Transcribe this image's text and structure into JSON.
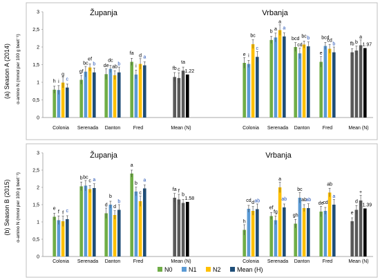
{
  "colors": {
    "N0": "#70ad47",
    "N1": "#5b9bd5",
    "N2": "#ffc000",
    "MeanH": "#1f4e79",
    "MeanN": "#595959",
    "MeanN_last": "#000000",
    "letter": "#000000",
    "letter_highlight": "#1f4eb4"
  },
  "legend": [
    {
      "key": "N0",
      "label": "N0"
    },
    {
      "key": "N1",
      "label": "N1"
    },
    {
      "key": "N2",
      "label": "N2"
    },
    {
      "key": "MeanH",
      "label": "Mean (H)"
    }
  ],
  "chart_data": [
    {
      "type": "bar",
      "panel_label": "(a) Season A (2014)",
      "ylabel": "α-amino N (mmol per 100 g beet⁻¹)",
      "ylim": [
        0,
        3
      ],
      "yticks": [
        "0",
        "0,5",
        "1",
        "1,5",
        "2",
        "2,5",
        "3"
      ],
      "locations": [
        "Županja",
        "Vrbanja"
      ],
      "categories": [
        "Colonia",
        "Serenada",
        "Danton",
        "Fred",
        "Mean (N)",
        "Colonia",
        "Serenada",
        "Danton",
        "Fred",
        "Mean (N)"
      ],
      "series": [
        {
          "name": "N0",
          "values": [
            0.79,
            1.07,
            1.23,
            1.58,
            1.15,
            1.55,
            2.2,
            2.0,
            1.58,
            1.85
          ],
          "letters": [
            "h",
            "gf",
            "de",
            "fa",
            "fb",
            "e",
            "b",
            "bcd",
            "e",
            "fb"
          ]
        },
        {
          "name": "N1",
          "values": [
            0.78,
            1.3,
            1.38,
            1.22,
            1.12,
            1.52,
            2.27,
            1.82,
            2.03,
            1.9
          ],
          "letters": [
            "i",
            "bc",
            "dc",
            "i",
            "c",
            "i",
            "a",
            "cd",
            "bcd",
            "b"
          ]
        },
        {
          "name": "N2",
          "values": [
            0.99,
            1.42,
            1.2,
            1.52,
            1.33,
            2.08,
            2.48,
            2.07,
            1.95,
            2.05
          ],
          "letters": [
            "g",
            "ef",
            "ab",
            "d",
            "ta",
            "bc",
            "a",
            "bc",
            "cd",
            "a"
          ]
        },
        {
          "name": "Mean (H)",
          "values": [
            0.85,
            1.28,
            1.28,
            1.48,
            1.22,
            1.72,
            2.3,
            2.02,
            1.85,
            1.97
          ],
          "letters": [
            "c",
            "b",
            "b",
            "a",
            "",
            "c",
            "a",
            "b",
            "b",
            ""
          ]
        }
      ],
      "mean_value_labels": [
        "1.22",
        "1.97"
      ]
    },
    {
      "type": "bar",
      "panel_label": "(b) Season B (2015)",
      "ylabel": "α-amino N (mmol per 100 g beet⁻¹)",
      "ylim": [
        0,
        3
      ],
      "yticks": [
        "0",
        "0,5",
        "1",
        "1,5",
        "2",
        "2,5",
        "3"
      ],
      "locations": [
        "Županja",
        "Vrbanja"
      ],
      "categories": [
        "Colonia",
        "Serenada",
        "Danton",
        "Fred",
        "Mean (N)",
        "Colonia",
        "Serenada",
        "Danton",
        "Fred",
        "Mean (N)"
      ],
      "series": [
        {
          "name": "N0",
          "values": [
            1.15,
            2.03,
            1.25,
            2.4,
            1.7,
            0.77,
            1.17,
            0.95,
            1.3,
            1.02
          ],
          "letters": [
            "e",
            "b",
            "d",
            "a",
            "fa",
            "h",
            "ef",
            "gh",
            "de",
            "e"
          ]
        },
        {
          "name": "N1",
          "values": [
            1.05,
            2.05,
            1.5,
            1.88,
            1.65,
            1.38,
            1.05,
            1.7,
            1.32,
            1.35
          ],
          "letters": [
            "f",
            "bc",
            "b",
            "b",
            "f",
            "cd",
            "fg",
            "bc",
            "cd",
            "d"
          ]
        },
        {
          "name": "N2",
          "values": [
            1.02,
            1.95,
            1.2,
            1.6,
            1.55,
            1.32,
            2.0,
            1.4,
            1.85,
            1.62
          ],
          "letters": [
            "f",
            "c",
            "d",
            "c",
            "b",
            "d",
            "a",
            "ab",
            "ab",
            "+"
          ]
        },
        {
          "name": "Mean (H)",
          "values": [
            1.08,
            1.98,
            1.35,
            1.97,
            1.58,
            1.37,
            1.42,
            1.4,
            1.5,
            1.39
          ],
          "letters": [
            "c",
            "a",
            "b",
            "a",
            "",
            "ab",
            "ab",
            "ab",
            "a",
            ""
          ]
        }
      ],
      "mean_value_labels": [
        "1.58",
        "1.39"
      ]
    }
  ]
}
